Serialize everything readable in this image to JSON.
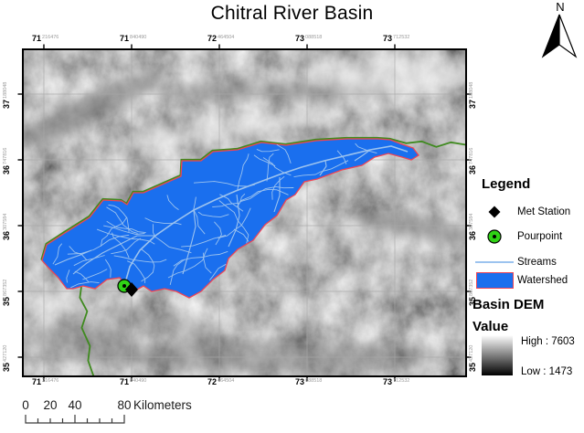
{
  "title": "Chitral River Basin",
  "north_arrow": {
    "label": "N"
  },
  "grid": {
    "top": [
      {
        "deg": "71",
        "frac": "216476"
      },
      {
        "deg": "71",
        "frac": "840490"
      },
      {
        "deg": "72",
        "frac": "464504"
      },
      {
        "deg": "73",
        "frac": "088518"
      },
      {
        "deg": "73",
        "frac": "712532"
      }
    ],
    "bottom": [
      {
        "deg": "71",
        "frac": "216476"
      },
      {
        "deg": "71",
        "frac": "840490"
      },
      {
        "deg": "72",
        "frac": "464504"
      },
      {
        "deg": "73",
        "frac": "088518"
      },
      {
        "deg": "73",
        "frac": "712532"
      }
    ],
    "left": [
      {
        "deg": "37",
        "frac": "188048"
      },
      {
        "deg": "36",
        "frac": "747816"
      },
      {
        "deg": "36",
        "frac": "307584"
      },
      {
        "deg": "35",
        "frac": "867352"
      },
      {
        "deg": "35",
        "frac": "427120"
      }
    ],
    "right": [
      {
        "deg": "37",
        "frac": "188048"
      },
      {
        "deg": "36",
        "frac": "747816"
      },
      {
        "deg": "36",
        "frac": "307584"
      },
      {
        "deg": "35",
        "frac": "867352"
      },
      {
        "deg": "35",
        "frac": "427120"
      }
    ]
  },
  "legend": {
    "title": "Legend",
    "items": [
      {
        "label": "Met Station",
        "symbol": "met-station-diamond"
      },
      {
        "label": "Pourpoint",
        "symbol": "pourpoint-circle"
      },
      {
        "label": "Streams",
        "symbol": "stream-line"
      },
      {
        "label": "Watershed",
        "symbol": "watershed-fill"
      }
    ],
    "basin_dem_title": "Basin DEM",
    "value_label": "Value",
    "high_label": "High : 7603",
    "low_label": "Low : 1473"
  },
  "scalebar": {
    "labels": [
      "0",
      "20",
      "40",
      "80"
    ],
    "unit": "Kilometers"
  },
  "colors": {
    "watershed_fill": "#1a6fee",
    "watershed_outline": "#ef4454",
    "streams": "#9cc3ef",
    "river": "#3f8a1f",
    "pourpoint_fill": "#2fd315",
    "pourpoint_dot": "#000000",
    "met_station": "#000000",
    "ramp_top": "#ffffff",
    "ramp_bottom": "#000000",
    "terrain_base": "#c9c9c9"
  }
}
